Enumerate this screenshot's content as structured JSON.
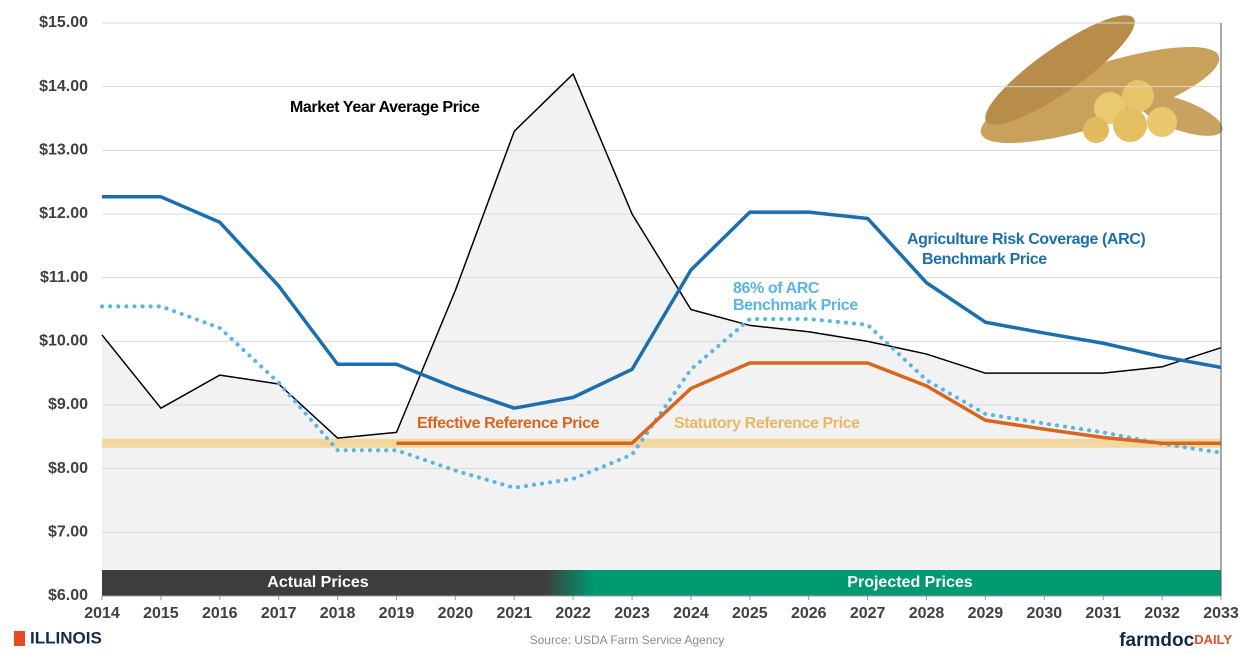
{
  "chart_data": {
    "type": "line",
    "x": [
      2014,
      2015,
      2016,
      2017,
      2018,
      2019,
      2020,
      2021,
      2022,
      2023,
      2024,
      2025,
      2026,
      2027,
      2028,
      2029,
      2030,
      2031,
      2032,
      2033
    ],
    "xlim": [
      2014,
      2033
    ],
    "xticks": [
      2014,
      2015,
      2016,
      2017,
      2018,
      2019,
      2020,
      2021,
      2022,
      2023,
      2024,
      2025,
      2026,
      2027,
      2028,
      2029,
      2030,
      2031,
      2032,
      2033
    ],
    "ylim": [
      6,
      15
    ],
    "yticks": [
      {
        "value": 6,
        "label": "$6.00"
      },
      {
        "value": 7,
        "label": "$7.00"
      },
      {
        "value": 8,
        "label": "$8.00"
      },
      {
        "value": 9,
        "label": "$9.00"
      },
      {
        "value": 10,
        "label": "$10.00"
      },
      {
        "value": 11,
        "label": "$11.00"
      },
      {
        "value": 12,
        "label": "$12.00"
      },
      {
        "value": 13,
        "label": "$13.00"
      },
      {
        "value": 14,
        "label": "$14.00"
      },
      {
        "value": 15,
        "label": "$15.00"
      }
    ],
    "grid": true,
    "series": [
      {
        "color": "#f2d79f",
        "values": [
          8.4,
          8.4,
          8.4,
          8.4,
          8.4,
          8.4,
          8.4,
          8.4,
          8.4,
          8.4,
          8.4,
          8.4,
          8.4,
          8.4,
          8.4,
          8.4,
          8.4,
          8.4,
          8.4,
          8.4
        ]
      },
      {
        "color": "#000000",
        "values": [
          10.1,
          8.95,
          9.47,
          9.33,
          8.48,
          8.57,
          10.8,
          13.3,
          14.2,
          12.0,
          10.5,
          10.25,
          10.15,
          10.0,
          9.8,
          9.5,
          9.5,
          9.5,
          9.6,
          9.9
        ]
      },
      {
        "color": "#1b6fae",
        "values": [
          12.27,
          12.27,
          11.87,
          10.87,
          9.64,
          9.64,
          9.27,
          8.95,
          9.12,
          9.56,
          11.12,
          12.03,
          12.03,
          11.93,
          10.92,
          10.3,
          10.13,
          9.97,
          9.76,
          9.59
        ]
      },
      {
        "color": "#5ab4e5",
        "values": [
          10.55,
          10.55,
          10.21,
          9.35,
          8.29,
          8.29,
          7.97,
          7.7,
          7.84,
          8.22,
          9.56,
          10.35,
          10.35,
          10.26,
          9.39,
          8.86,
          8.71,
          8.57,
          8.39,
          8.25
        ]
      },
      {
        "color": "#d9661f",
        "values": [
          null,
          null,
          null,
          null,
          null,
          8.4,
          8.4,
          8.4,
          8.4,
          8.4,
          9.26,
          9.66,
          9.66,
          9.66,
          9.3,
          8.76,
          8.62,
          8.49,
          8.4,
          8.4
        ]
      }
    ],
    "annotations": [
      "Market Year Average Price",
      "Agriculture Risk Coverage (ARC)",
      "Benchmark Price",
      "86% of ARC",
      "Benchmark Price",
      "Effective Reference Price",
      "Statutory Reference Price"
    ],
    "period_labels": [
      "Actual Prices",
      "Projected Prices"
    ],
    "source": "Source: USDA Farm Service Agency"
  },
  "footer": {
    "left_logo": "ILLINOIS",
    "right_logo": [
      "farmdoc",
      "DAILY"
    ]
  }
}
